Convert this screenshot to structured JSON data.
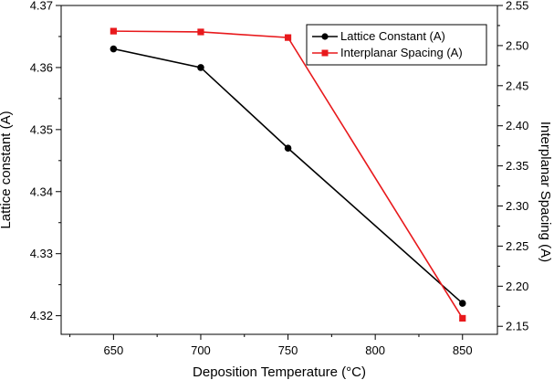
{
  "chart_data": {
    "type": "line",
    "xlabel": "Deposition Temperature (°C)",
    "ylabel": "Lattice constant (A)",
    "y2label": "Interplanar Spacing (A)",
    "xlim": [
      620,
      870
    ],
    "ylim": [
      4.317,
      4.37
    ],
    "y2lim": [
      2.14,
      2.55
    ],
    "x_ticks": [
      650,
      700,
      750,
      800,
      850
    ],
    "y_ticks": [
      4.32,
      4.33,
      4.34,
      4.35,
      4.36,
      4.37
    ],
    "y_tick_labels": [
      "4.32",
      "4.33",
      "4.34",
      "4.35",
      "4.36",
      "4.37"
    ],
    "y2_ticks": [
      2.15,
      2.2,
      2.25,
      2.3,
      2.35,
      2.4,
      2.45,
      2.5,
      2.55
    ],
    "y2_tick_labels": [
      "2.15",
      "2.20",
      "2.25",
      "2.30",
      "2.35",
      "2.40",
      "2.45",
      "2.50",
      "2.55"
    ],
    "series": [
      {
        "name": "Lattice Constant  (A)",
        "axis": "left",
        "color": "#000000",
        "marker": "circle",
        "x": [
          650,
          700,
          750,
          850
        ],
        "values": [
          4.363,
          4.36,
          4.347,
          4.322
        ]
      },
      {
        "name": "Interplanar Spacing (A)",
        "axis": "right",
        "color": "#e8191c",
        "marker": "square",
        "x": [
          650,
          700,
          750,
          850
        ],
        "values": [
          2.518,
          2.517,
          2.51,
          2.16
        ]
      }
    ],
    "legend_position": "top-right"
  }
}
